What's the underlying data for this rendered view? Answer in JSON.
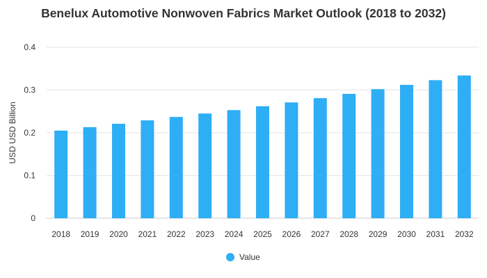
{
  "chart_data": {
    "type": "bar",
    "title": "Benelux Automotive Nonwoven Fabrics Market Outlook (2018 to 2032)",
    "xlabel": "",
    "ylabel": "USD USD Billion",
    "ylim": [
      0,
      0.4
    ],
    "yticks": [
      "0",
      "0.1",
      "0.2",
      "0.3",
      "0.4"
    ],
    "categories": [
      "2018",
      "2019",
      "2020",
      "2021",
      "2022",
      "2023",
      "2024",
      "2025",
      "2026",
      "2027",
      "2028",
      "2029",
      "2030",
      "2031",
      "2032"
    ],
    "series": [
      {
        "name": "Value",
        "values": [
          0.205,
          0.213,
          0.221,
          0.229,
          0.237,
          0.245,
          0.253,
          0.262,
          0.271,
          0.281,
          0.291,
          0.302,
          0.312,
          0.323,
          0.334
        ]
      }
    ],
    "grid": true,
    "legend_position": "bottom-center",
    "colors": {
      "bar": "#2EAEF4",
      "grid": "#E6E6E6"
    }
  }
}
